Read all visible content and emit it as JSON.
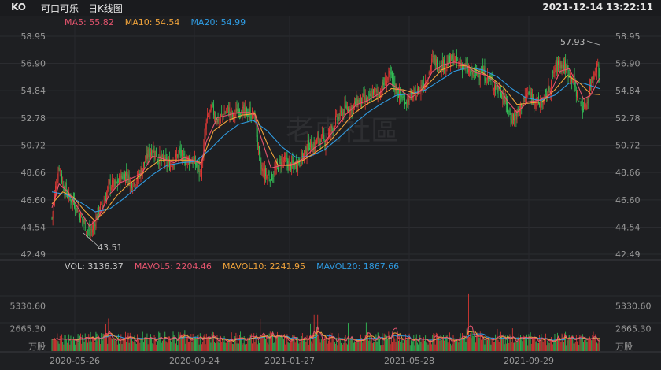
{
  "header": {
    "symbol": "KO",
    "name": "可口可乐 - 日K线图",
    "datetime": "2021-12-14 13:22:11"
  },
  "ma_legend": [
    {
      "label": "MA5: 55.82",
      "color": "#e5546e"
    },
    {
      "label": "MA10: 54.54",
      "color": "#f0a33b"
    },
    {
      "label": "MA20: 54.99",
      "color": "#2f9ae0"
    }
  ],
  "vol_legend": [
    {
      "label": "VOL: 3136.37",
      "color": "#c8c8c8"
    },
    {
      "label": "MAVOL5: 2204.46",
      "color": "#e5546e"
    },
    {
      "label": "MAVOL10: 2241.95",
      "color": "#f0a33b"
    },
    {
      "label": "MAVOL20: 1867.66",
      "color": "#2f9ae0"
    }
  ],
  "watermark": "老虎社區",
  "price_axis": [
    "58.95",
    "56.90",
    "54.84",
    "52.78",
    "50.72",
    "48.66",
    "46.60",
    "44.54",
    "42.49"
  ],
  "volume_axis": [
    "5330.60",
    "2665.30",
    "万股"
  ],
  "annotations": {
    "high": "57.93",
    "low": "43.51"
  },
  "colors": {
    "up": "#e53935",
    "down": "#34c759",
    "background": "#1e1f22"
  },
  "chart_data": {
    "type": "candlestick",
    "x_ticks": [
      "2020-05-26",
      "2020-09-24",
      "2021-01-27",
      "2021-05-28",
      "2021-09-29"
    ],
    "ylim": [
      42.49,
      58.95
    ],
    "volume_ylim": [
      0,
      7995.9
    ],
    "grid": true,
    "series": [
      {
        "name": "MA5",
        "value": 55.82
      },
      {
        "name": "MA10",
        "value": 54.54
      },
      {
        "name": "MA20",
        "value": 54.99
      }
    ],
    "volume_series": [
      {
        "name": "VOL",
        "value": 3136.37
      },
      {
        "name": "MAVOL5",
        "value": 2204.46
      },
      {
        "name": "MAVOL10",
        "value": 2241.95
      },
      {
        "name": "MAVOL20",
        "value": 1867.66
      }
    ],
    "close_path": [
      [
        0,
        45.2
      ],
      [
        4,
        47.5
      ],
      [
        8,
        49.2
      ],
      [
        12,
        47.8
      ],
      [
        18,
        46.8
      ],
      [
        24,
        46.5
      ],
      [
        30,
        45.6
      ],
      [
        36,
        44.8
      ],
      [
        42,
        44.0
      ],
      [
        46,
        44.6
      ],
      [
        52,
        45.8
      ],
      [
        58,
        46.4
      ],
      [
        64,
        47.8
      ],
      [
        70,
        47.6
      ],
      [
        76,
        48.2
      ],
      [
        82,
        48.6
      ],
      [
        88,
        47.9
      ],
      [
        94,
        48.1
      ],
      [
        100,
        48.9
      ],
      [
        106,
        49.9
      ],
      [
        112,
        50.5
      ],
      [
        118,
        49.8
      ],
      [
        124,
        49.5
      ],
      [
        130,
        49.2
      ],
      [
        136,
        49.6
      ],
      [
        142,
        50.2
      ],
      [
        148,
        49.6
      ],
      [
        154,
        49.7
      ],
      [
        160,
        49.3
      ],
      [
        166,
        48.5
      ],
      [
        172,
        52.5
      ],
      [
        178,
        53.5
      ],
      [
        184,
        52.6
      ],
      [
        190,
        53.0
      ],
      [
        196,
        53.4
      ],
      [
        202,
        52.8
      ],
      [
        208,
        53.6
      ],
      [
        214,
        53.1
      ],
      [
        220,
        53.2
      ],
      [
        226,
        52.8
      ],
      [
        232,
        49.0
      ],
      [
        238,
        48.5
      ],
      [
        244,
        48.3
      ],
      [
        250,
        48.9
      ],
      [
        256,
        49.6
      ],
      [
        262,
        49.4
      ],
      [
        268,
        49.1
      ],
      [
        274,
        49.4
      ],
      [
        280,
        50.0
      ],
      [
        286,
        50.8
      ],
      [
        292,
        50.6
      ],
      [
        298,
        51.3
      ],
      [
        304,
        51.0
      ],
      [
        310,
        51.8
      ],
      [
        316,
        52.6
      ],
      [
        322,
        53.0
      ],
      [
        328,
        53.6
      ],
      [
        334,
        53.5
      ],
      [
        340,
        54.0
      ],
      [
        346,
        54.2
      ],
      [
        352,
        54.0
      ],
      [
        358,
        54.8
      ],
      [
        364,
        54.6
      ],
      [
        370,
        55.4
      ],
      [
        376,
        56.0
      ],
      [
        382,
        55.2
      ],
      [
        388,
        54.4
      ],
      [
        394,
        54.1
      ],
      [
        400,
        54.3
      ],
      [
        406,
        54.6
      ],
      [
        412,
        55.2
      ],
      [
        418,
        55.8
      ],
      [
        424,
        57.2
      ],
      [
        430,
        56.8
      ],
      [
        436,
        56.8
      ],
      [
        442,
        57.0
      ],
      [
        448,
        57.3
      ],
      [
        454,
        56.8
      ],
      [
        460,
        56.6
      ],
      [
        466,
        56.2
      ],
      [
        472,
        56.0
      ],
      [
        478,
        56.4
      ],
      [
        484,
        55.8
      ],
      [
        490,
        55.5
      ],
      [
        496,
        55.0
      ],
      [
        502,
        54.6
      ],
      [
        508,
        53.2
      ],
      [
        512,
        52.8
      ],
      [
        518,
        53.0
      ],
      [
        524,
        53.9
      ],
      [
        530,
        54.6
      ],
      [
        536,
        54.3
      ],
      [
        542,
        53.8
      ],
      [
        548,
        54.1
      ],
      [
        554,
        55.0
      ],
      [
        560,
        56.5
      ],
      [
        566,
        56.9
      ],
      [
        572,
        56.6
      ],
      [
        576,
        56.2
      ],
      [
        580,
        55.7
      ],
      [
        586,
        54.2
      ],
      [
        592,
        53.5
      ],
      [
        596,
        54.0
      ],
      [
        600,
        55.4
      ],
      [
        604,
        56.4
      ],
      [
        608,
        56.8
      ],
      [
        610,
        55.8
      ]
    ],
    "ma5_path": [
      [
        0,
        46.0
      ],
      [
        8,
        47.8
      ],
      [
        18,
        47.2
      ],
      [
        30,
        45.9
      ],
      [
        42,
        44.6
      ],
      [
        52,
        45.3
      ],
      [
        64,
        47.0
      ],
      [
        76,
        47.9
      ],
      [
        88,
        48.2
      ],
      [
        100,
        48.6
      ],
      [
        112,
        49.9
      ],
      [
        124,
        49.7
      ],
      [
        136,
        49.4
      ],
      [
        148,
        49.8
      ],
      [
        160,
        49.5
      ],
      [
        166,
        49.3
      ],
      [
        172,
        51.0
      ],
      [
        184,
        52.8
      ],
      [
        196,
        53.0
      ],
      [
        208,
        53.2
      ],
      [
        220,
        53.2
      ],
      [
        226,
        53.0
      ],
      [
        232,
        51.5
      ],
      [
        244,
        49.0
      ],
      [
        256,
        49.2
      ],
      [
        268,
        49.3
      ],
      [
        280,
        49.7
      ],
      [
        292,
        50.5
      ],
      [
        304,
        51.0
      ],
      [
        316,
        52.0
      ],
      [
        328,
        53.1
      ],
      [
        340,
        53.8
      ],
      [
        352,
        54.1
      ],
      [
        364,
        54.6
      ],
      [
        376,
        55.4
      ],
      [
        388,
        54.9
      ],
      [
        400,
        54.3
      ],
      [
        412,
        54.9
      ],
      [
        424,
        56.3
      ],
      [
        436,
        56.8
      ],
      [
        448,
        57.0
      ],
      [
        460,
        56.8
      ],
      [
        472,
        56.2
      ],
      [
        484,
        56.0
      ],
      [
        496,
        55.3
      ],
      [
        508,
        54.0
      ],
      [
        518,
        53.2
      ],
      [
        530,
        54.0
      ],
      [
        542,
        54.1
      ],
      [
        554,
        54.5
      ],
      [
        566,
        56.3
      ],
      [
        576,
        56.5
      ],
      [
        586,
        55.2
      ],
      [
        592,
        54.2
      ],
      [
        600,
        54.5
      ],
      [
        610,
        55.8
      ]
    ],
    "ma10_path": [
      [
        0,
        46.3
      ],
      [
        12,
        47.2
      ],
      [
        24,
        46.8
      ],
      [
        36,
        45.8
      ],
      [
        48,
        45.0
      ],
      [
        60,
        45.8
      ],
      [
        72,
        46.9
      ],
      [
        84,
        47.7
      ],
      [
        96,
        48.3
      ],
      [
        108,
        49.0
      ],
      [
        120,
        49.6
      ],
      [
        132,
        49.6
      ],
      [
        144,
        49.6
      ],
      [
        156,
        49.6
      ],
      [
        166,
        49.4
      ],
      [
        180,
        51.8
      ],
      [
        196,
        52.6
      ],
      [
        212,
        53.0
      ],
      [
        226,
        53.1
      ],
      [
        240,
        50.8
      ],
      [
        252,
        49.2
      ],
      [
        266,
        49.2
      ],
      [
        280,
        49.6
      ],
      [
        294,
        50.2
      ],
      [
        308,
        50.9
      ],
      [
        322,
        52.0
      ],
      [
        336,
        53.1
      ],
      [
        350,
        53.8
      ],
      [
        364,
        54.3
      ],
      [
        378,
        55.0
      ],
      [
        392,
        54.9
      ],
      [
        406,
        54.6
      ],
      [
        420,
        55.4
      ],
      [
        434,
        56.4
      ],
      [
        448,
        56.8
      ],
      [
        462,
        56.7
      ],
      [
        476,
        56.3
      ],
      [
        490,
        55.8
      ],
      [
        504,
        55.0
      ],
      [
        518,
        53.8
      ],
      [
        532,
        53.9
      ],
      [
        546,
        54.0
      ],
      [
        560,
        54.9
      ],
      [
        574,
        56.0
      ],
      [
        588,
        55.4
      ],
      [
        600,
        54.6
      ],
      [
        610,
        54.54
      ]
    ],
    "ma20_path": [
      [
        0,
        47.2
      ],
      [
        16,
        47.0
      ],
      [
        32,
        46.4
      ],
      [
        48,
        45.7
      ],
      [
        64,
        45.9
      ],
      [
        80,
        46.7
      ],
      [
        96,
        47.6
      ],
      [
        112,
        48.5
      ],
      [
        128,
        49.2
      ],
      [
        144,
        49.4
      ],
      [
        160,
        49.5
      ],
      [
        176,
        50.4
      ],
      [
        192,
        51.5
      ],
      [
        208,
        52.3
      ],
      [
        224,
        52.6
      ],
      [
        240,
        51.8
      ],
      [
        256,
        50.6
      ],
      [
        272,
        49.8
      ],
      [
        288,
        49.9
      ],
      [
        304,
        50.4
      ],
      [
        320,
        51.3
      ],
      [
        336,
        52.3
      ],
      [
        352,
        53.2
      ],
      [
        368,
        53.9
      ],
      [
        384,
        54.5
      ],
      [
        400,
        54.6
      ],
      [
        416,
        54.9
      ],
      [
        432,
        55.6
      ],
      [
        448,
        56.3
      ],
      [
        464,
        56.6
      ],
      [
        480,
        56.4
      ],
      [
        496,
        55.9
      ],
      [
        512,
        55.0
      ],
      [
        528,
        54.3
      ],
      [
        544,
        54.1
      ],
      [
        560,
        54.5
      ],
      [
        576,
        55.4
      ],
      [
        592,
        55.4
      ],
      [
        610,
        54.99
      ]
    ]
  }
}
